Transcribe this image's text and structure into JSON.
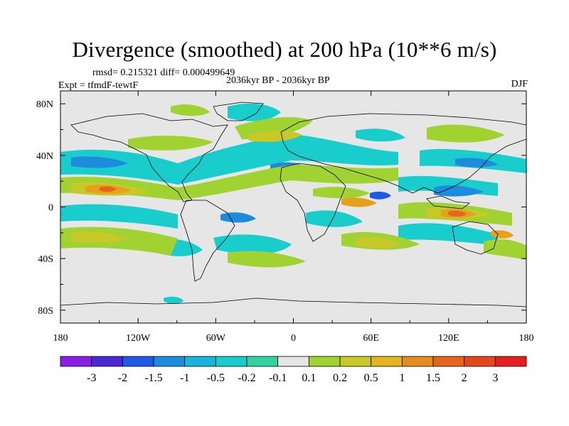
{
  "title": "Divergence (smoothed) at 200 hPa (10**6 m/s)",
  "stats": "rmsd= 0.215321 diff= 0.000499649",
  "subtitle": "2036kyr BP - 2036kyr BP",
  "experiment": "Expt = tfmdF-tewtF",
  "season": "DJF",
  "x_ticks": [
    {
      "label": "180",
      "lon": -180
    },
    {
      "label": "120W",
      "lon": -120
    },
    {
      "label": "60W",
      "lon": -60
    },
    {
      "label": "0",
      "lon": 0
    },
    {
      "label": "60E",
      "lon": 60
    },
    {
      "label": "120E",
      "lon": 120
    },
    {
      "label": "180",
      "lon": 180
    }
  ],
  "y_ticks": [
    {
      "label": "80N",
      "lat": 80
    },
    {
      "label": "40N",
      "lat": 40
    },
    {
      "label": "0",
      "lat": 0
    },
    {
      "label": "40S",
      "lat": -40
    },
    {
      "label": "80S",
      "lat": -80
    }
  ],
  "colorbar": {
    "labels": [
      "-3",
      "-2",
      "-1.5",
      "-1",
      "-0.5",
      "-0.2",
      "-0.1",
      "0.1",
      "0.2",
      "0.5",
      "1",
      "1.5",
      "2",
      "3"
    ],
    "colors": [
      "#8a1ee6",
      "#4b28d2",
      "#1e5ae6",
      "#1e8cdc",
      "#19b4dc",
      "#19cdcd",
      "#32d2a0",
      "#e6e6e6",
      "#a0d232",
      "#c8c828",
      "#e6b41e",
      "#e68c1e",
      "#e6641e",
      "#e6461e",
      "#e61e1e"
    ]
  },
  "palette": {
    "background": "#e6e6e6",
    "neg_weak": "#19cdcd",
    "neg_mid": "#1e8cdc",
    "neg_strong": "#1e5ae6",
    "pos_weak": "#a0d232",
    "pos_mid": "#c8c828",
    "pos_strong": "#e6a01e",
    "pos_max": "#e6641e",
    "coast": "#000000"
  }
}
